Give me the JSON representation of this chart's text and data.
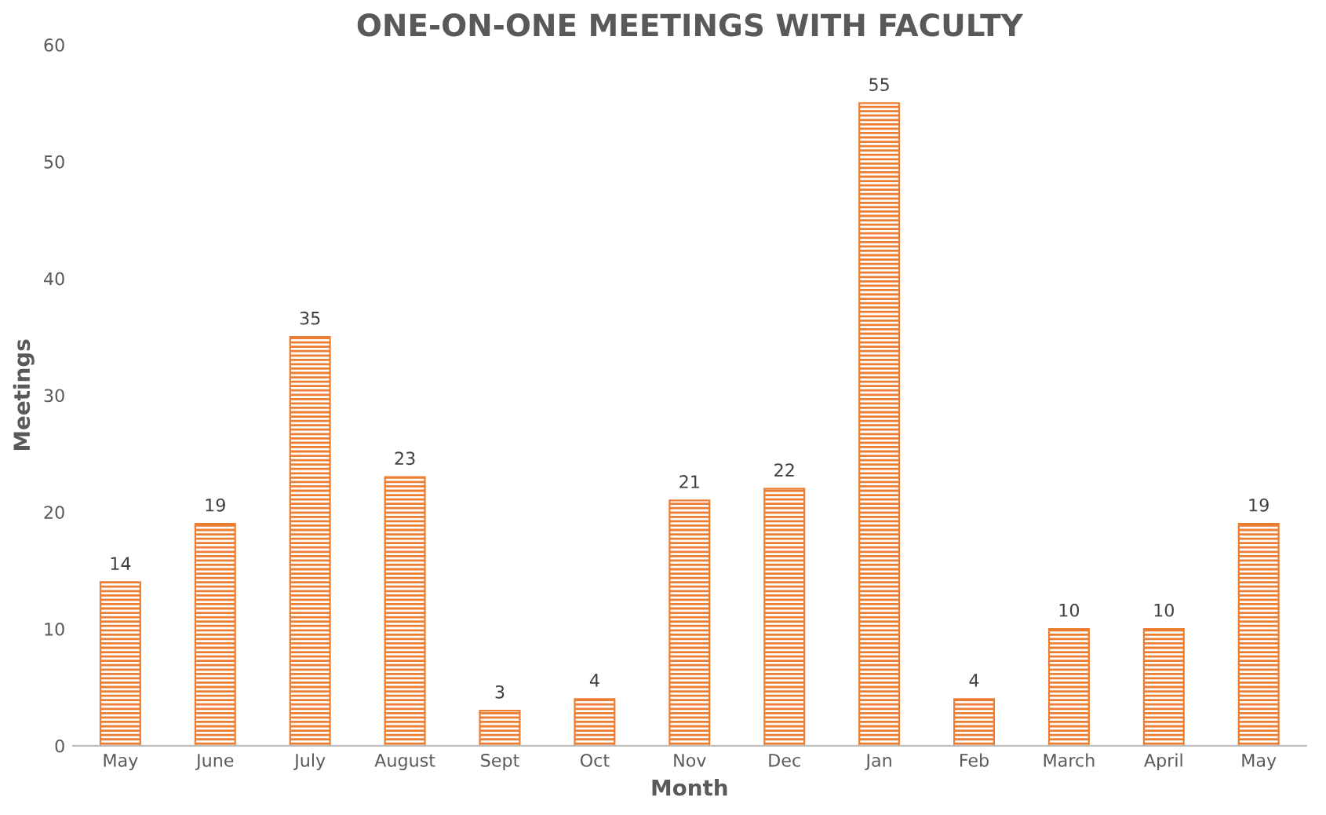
{
  "chart_data": {
    "type": "bar",
    "title": "ONE-ON-ONE MEETINGS WITH FACULTY",
    "xlabel": "Month",
    "ylabel": "Meetings",
    "categories": [
      "May",
      "June",
      "July",
      "August",
      "Sept",
      "Oct",
      "Nov",
      "Dec",
      "Jan",
      "Feb",
      "March",
      "April",
      "May"
    ],
    "values": [
      14,
      19,
      35,
      23,
      3,
      4,
      21,
      22,
      55,
      4,
      10,
      10,
      19
    ],
    "color": "#ed7d31",
    "ylim": [
      0,
      60
    ],
    "yticks": [
      0,
      10,
      20,
      30,
      40,
      50,
      60
    ],
    "grid": false,
    "data_labels": true,
    "legend": false
  }
}
